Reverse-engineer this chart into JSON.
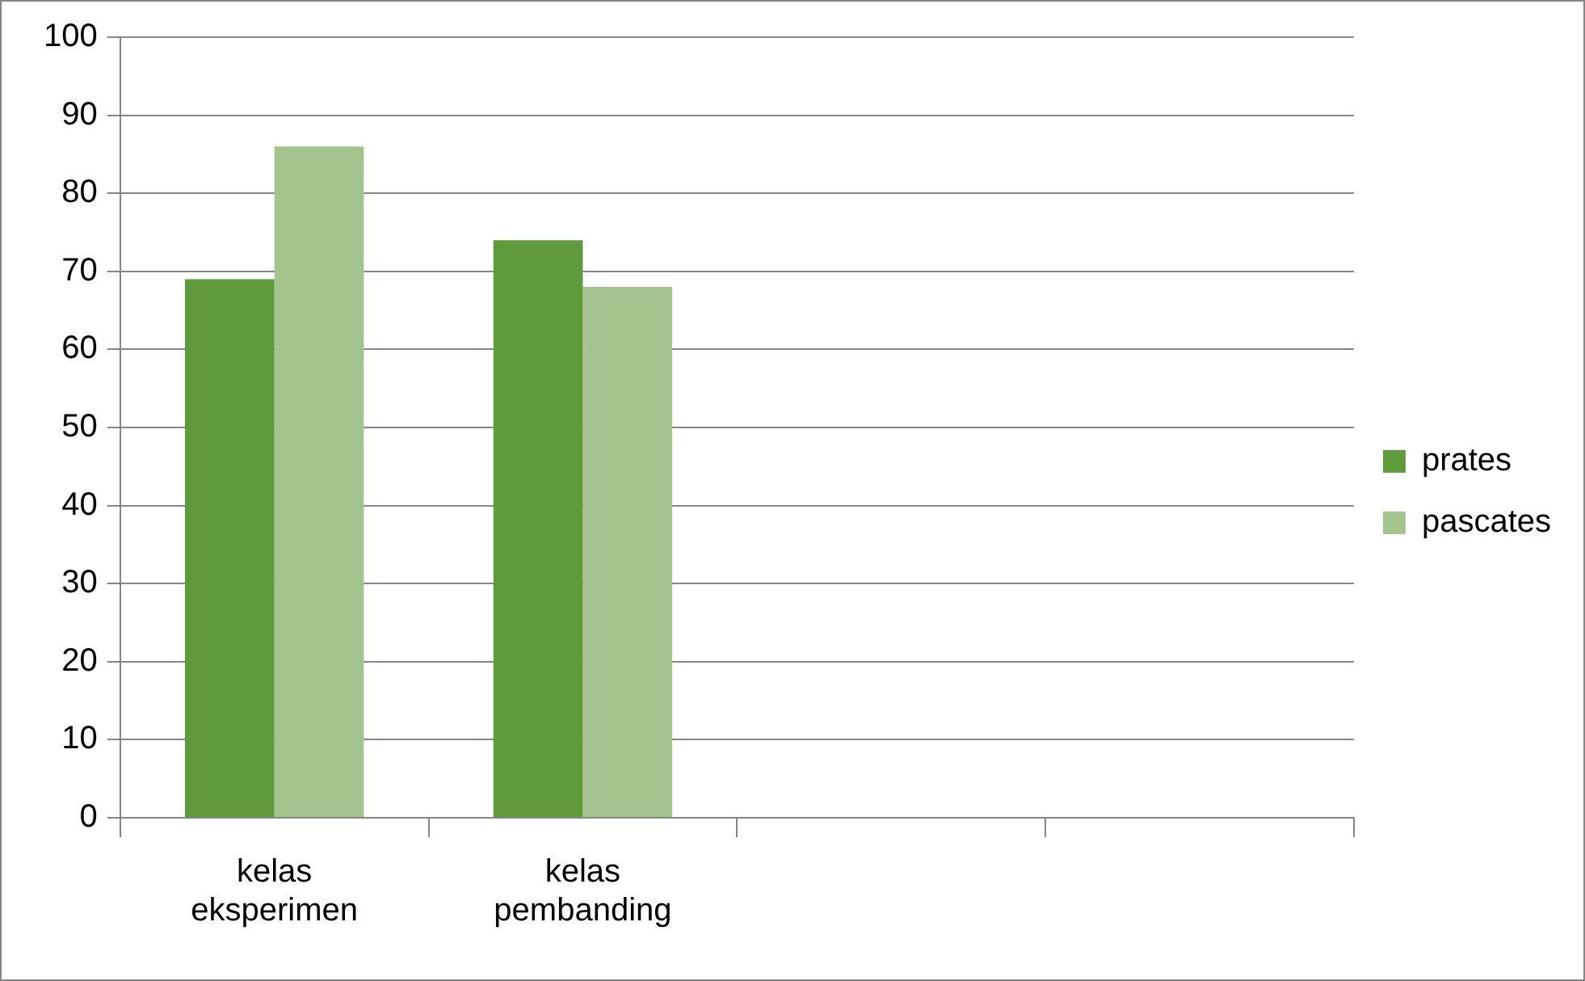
{
  "chart_data": {
    "type": "bar",
    "categories": [
      "kelas eksperimen",
      "kelas pembanding",
      null,
      null
    ],
    "series": [
      {
        "name": "prates",
        "color": "#5f9a3c",
        "values": [
          69,
          74,
          null,
          null
        ]
      },
      {
        "name": "pascates",
        "color": "#a3c58d",
        "values": [
          86,
          68,
          null,
          null
        ]
      }
    ],
    "ylim": [
      0,
      100
    ],
    "yticks": [
      0,
      10,
      20,
      30,
      40,
      50,
      60,
      70,
      80,
      90,
      100
    ],
    "grid": "y",
    "legend": "right"
  }
}
